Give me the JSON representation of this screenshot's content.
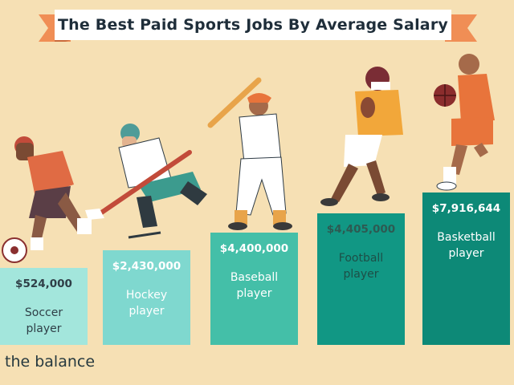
{
  "title": "The Best Paid Sports Jobs By Average Salary",
  "brand": "the balance",
  "colors": {
    "background": "#f6e0b4",
    "ribbon": "#f08e55",
    "title_text": "#1f2e3a",
    "brand_text": "#26393f"
  },
  "chart_data": {
    "type": "bar",
    "title": "The Best Paid Sports Jobs By Average Salary",
    "categories": [
      "Soccer player",
      "Hockey player",
      "Baseball player",
      "Football player",
      "Basketball player"
    ],
    "values": [
      524000,
      2430000,
      4400000,
      4405000,
      7916644
    ],
    "value_labels": [
      "$524,000",
      "$2,430,000",
      "$4,400,000",
      "$4,405,000",
      "$7,916,644"
    ],
    "label_lines": [
      [
        "Soccer",
        "player"
      ],
      [
        "Hockey",
        "player"
      ],
      [
        "Baseball",
        "player"
      ],
      [
        "Football",
        "player"
      ],
      [
        "Basketball",
        "player"
      ]
    ],
    "bar_colors": [
      "#a3e6dc",
      "#7fd8cf",
      "#44bfa8",
      "#119784",
      "#0d8977"
    ],
    "value_text_colors": [
      "#2f3f47",
      "#ffffff",
      "#ffffff",
      "#2d5a52",
      "#ffffff"
    ],
    "label_text_colors": [
      "#2f3f47",
      "#ffffff",
      "#ffffff",
      "#1d4f47",
      "#ffffff"
    ],
    "xlabel": "",
    "ylabel": "",
    "ylim": [
      0,
      8000000
    ],
    "grid": false,
    "legend": "none"
  }
}
